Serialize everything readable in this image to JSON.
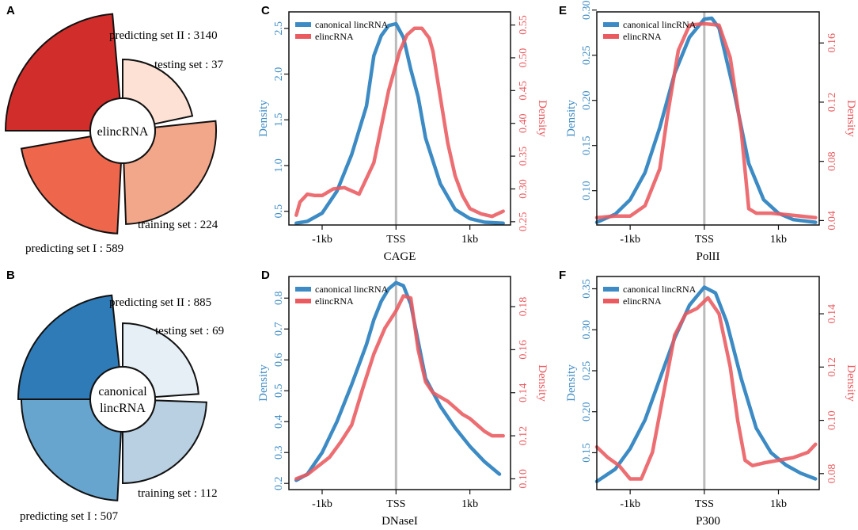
{
  "colors": {
    "blue": "#3C8BC4",
    "red": "#EB5A5F",
    "tss_line": "#BBBBBB"
  },
  "chart_data": [
    {
      "type": "radial_bar",
      "panel": "A",
      "center_label": [
        "elincRNA"
      ],
      "segments": [
        {
          "label": "predicting set II : 3140",
          "value": 3140,
          "color": "#D12E2B"
        },
        {
          "label": "testing set : 37",
          "value": 37,
          "color": "#FDE1D4"
        },
        {
          "label": "training set : 224",
          "value": 224,
          "color": "#F3A78A"
        },
        {
          "label": "predicting set I : 589",
          "value": 589,
          "color": "#EE674C"
        }
      ]
    },
    {
      "type": "radial_bar",
      "panel": "B",
      "center_label": [
        "canonical",
        "lincRNA"
      ],
      "segments": [
        {
          "label": "predicting set II : 885",
          "value": 885,
          "color": "#2E7BB7"
        },
        {
          "label": "testing set : 69",
          "value": 69,
          "color": "#E5EFF5"
        },
        {
          "label": "training set : 112",
          "value": 112,
          "color": "#B8D0E1"
        },
        {
          "label": "predicting set I : 507",
          "value": 507,
          "color": "#67A5CE"
        }
      ]
    },
    {
      "type": "line",
      "panel": "C",
      "xlabel": "CAGE",
      "xticks": [
        "-1kb",
        "TSS",
        "1kb"
      ],
      "xlim": [
        -1.45,
        1.55
      ],
      "legend": [
        "canonical lincRNA",
        "elincRNA"
      ],
      "series": [
        {
          "name": "canonical lincRNA",
          "axis": "left",
          "ylabel": "Density",
          "ylim": [
            0.35,
            2.68
          ],
          "yticks": [
            "0.5",
            "1.0",
            "1.5",
            "2.0",
            "2.5"
          ],
          "ytick_values": [
            0.5,
            1.0,
            1.5,
            2.0,
            2.5
          ],
          "x": [
            -1.35,
            -1.2,
            -1.0,
            -0.8,
            -0.6,
            -0.4,
            -0.3,
            -0.2,
            -0.1,
            0.0,
            0.1,
            0.2,
            0.3,
            0.4,
            0.6,
            0.8,
            1.0,
            1.2,
            1.45
          ],
          "y": [
            0.37,
            0.39,
            0.48,
            0.72,
            1.12,
            1.65,
            2.2,
            2.42,
            2.53,
            2.55,
            2.4,
            2.05,
            1.75,
            1.3,
            0.8,
            0.52,
            0.42,
            0.38,
            0.37
          ]
        },
        {
          "name": "elincRNA",
          "axis": "right",
          "ylabel": "Density",
          "ylim": [
            0.245,
            0.57
          ],
          "yticks": [
            "0.25",
            "0.30",
            "0.35",
            "0.40",
            "0.45",
            "0.50",
            "0.55"
          ],
          "ytick_values": [
            0.25,
            0.3,
            0.35,
            0.4,
            0.45,
            0.5,
            0.55
          ],
          "x": [
            -1.35,
            -1.3,
            -1.2,
            -1.1,
            -1.0,
            -0.85,
            -0.7,
            -0.5,
            -0.3,
            -0.1,
            0.05,
            0.15,
            0.25,
            0.35,
            0.45,
            0.5,
            0.6,
            0.7,
            0.8,
            0.9,
            1.0,
            1.15,
            1.3,
            1.45
          ],
          "y": [
            0.26,
            0.28,
            0.292,
            0.29,
            0.29,
            0.3,
            0.302,
            0.292,
            0.34,
            0.45,
            0.51,
            0.535,
            0.545,
            0.545,
            0.53,
            0.51,
            0.44,
            0.37,
            0.32,
            0.29,
            0.27,
            0.262,
            0.258,
            0.266
          ]
        }
      ]
    },
    {
      "type": "line",
      "panel": "D",
      "xlabel": "DNaseI",
      "xticks": [
        "-1kb",
        "TSS",
        "1kb"
      ],
      "xlim": [
        -1.45,
        1.55
      ],
      "legend": [
        "canonical lincRNA",
        "elincRNA"
      ],
      "series": [
        {
          "name": "canonical lincRNA",
          "axis": "left",
          "ylabel": "Density",
          "ylim": [
            0.18,
            0.87
          ],
          "yticks": [
            "0.2",
            "0.3",
            "0.4",
            "0.5",
            "0.6",
            "0.7",
            "0.8"
          ],
          "ytick_values": [
            0.2,
            0.3,
            0.4,
            0.5,
            0.6,
            0.7,
            0.8
          ],
          "x": [
            -1.35,
            -1.2,
            -1.0,
            -0.8,
            -0.6,
            -0.4,
            -0.3,
            -0.2,
            -0.1,
            0.0,
            0.1,
            0.2,
            0.3,
            0.4,
            0.6,
            0.8,
            1.0,
            1.2,
            1.4
          ],
          "y": [
            0.21,
            0.23,
            0.3,
            0.4,
            0.52,
            0.65,
            0.73,
            0.79,
            0.83,
            0.85,
            0.84,
            0.78,
            0.66,
            0.54,
            0.45,
            0.38,
            0.32,
            0.27,
            0.23
          ]
        },
        {
          "name": "elincRNA",
          "axis": "right",
          "ylabel": "Density",
          "ylim": [
            0.095,
            0.194
          ],
          "yticks": [
            "0.10",
            "0.12",
            "0.14",
            "0.16",
            "0.18"
          ],
          "ytick_values": [
            0.1,
            0.12,
            0.14,
            0.16,
            0.18
          ],
          "x": [
            -1.35,
            -1.2,
            -1.05,
            -0.9,
            -0.75,
            -0.6,
            -0.45,
            -0.3,
            -0.15,
            0.0,
            0.1,
            0.2,
            0.3,
            0.4,
            0.5,
            0.6,
            0.7,
            0.8,
            0.9,
            1.0,
            1.1,
            1.2,
            1.3,
            1.45
          ],
          "y": [
            0.1,
            0.102,
            0.106,
            0.11,
            0.117,
            0.125,
            0.142,
            0.158,
            0.17,
            0.178,
            0.185,
            0.184,
            0.16,
            0.145,
            0.14,
            0.138,
            0.136,
            0.133,
            0.13,
            0.128,
            0.125,
            0.122,
            0.12,
            0.12
          ]
        }
      ]
    },
    {
      "type": "line",
      "panel": "E",
      "xlabel": "PolII",
      "xticks": [
        "-1kb",
        "TSS",
        "1kb"
      ],
      "xlim": [
        -1.45,
        1.55
      ],
      "legend": [
        "canonical lincRNA",
        "elincRNA"
      ],
      "series": [
        {
          "name": "canonical lincRNA",
          "axis": "left",
          "ylabel": "Density",
          "ylim": [
            0.062,
            0.298
          ],
          "yticks": [
            "0.10",
            "0.15",
            "0.20",
            "0.25",
            "0.30"
          ],
          "ytick_values": [
            0.1,
            0.15,
            0.2,
            0.25,
            0.3
          ],
          "x": [
            -1.45,
            -1.2,
            -1.0,
            -0.8,
            -0.6,
            -0.4,
            -0.2,
            0.0,
            0.1,
            0.2,
            0.4,
            0.6,
            0.8,
            1.0,
            1.2,
            1.5
          ],
          "y": [
            0.065,
            0.074,
            0.09,
            0.12,
            0.17,
            0.23,
            0.27,
            0.29,
            0.291,
            0.28,
            0.21,
            0.13,
            0.09,
            0.075,
            0.068,
            0.065
          ]
        },
        {
          "name": "elincRNA",
          "axis": "right",
          "ylabel": "Density",
          "ylim": [
            0.037,
            0.181
          ],
          "yticks": [
            "0.04",
            "0.08",
            "0.12",
            "0.16"
          ],
          "ytick_values": [
            0.04,
            0.08,
            0.12,
            0.16
          ],
          "x": [
            -1.45,
            -1.2,
            -1.0,
            -0.8,
            -0.6,
            -0.5,
            -0.35,
            -0.2,
            0.0,
            0.2,
            0.35,
            0.5,
            0.6,
            0.7,
            0.9,
            1.1,
            1.3,
            1.5
          ],
          "y": [
            0.042,
            0.043,
            0.043,
            0.05,
            0.075,
            0.11,
            0.155,
            0.172,
            0.173,
            0.172,
            0.15,
            0.1,
            0.048,
            0.045,
            0.045,
            0.044,
            0.043,
            0.042
          ]
        }
      ]
    },
    {
      "type": "line",
      "panel": "F",
      "xlabel": "P300",
      "xticks": [
        "-1kb",
        "TSS",
        "1kb"
      ],
      "xlim": [
        -1.45,
        1.55
      ],
      "legend": [
        "canonical lincRNA",
        "elincRNA"
      ],
      "series": [
        {
          "name": "canonical lincRNA",
          "axis": "left",
          "ylabel": "Density",
          "ylim": [
            0.105,
            0.365
          ],
          "yticks": [
            "0.15",
            "0.20",
            "0.25",
            "0.30",
            "0.35"
          ],
          "ytick_values": [
            0.15,
            0.2,
            0.25,
            0.3,
            0.35
          ],
          "x": [
            -1.45,
            -1.2,
            -1.0,
            -0.8,
            -0.6,
            -0.4,
            -0.2,
            0.0,
            0.15,
            0.3,
            0.5,
            0.7,
            0.9,
            1.1,
            1.3,
            1.5
          ],
          "y": [
            0.115,
            0.13,
            0.155,
            0.19,
            0.24,
            0.29,
            0.33,
            0.352,
            0.345,
            0.31,
            0.24,
            0.18,
            0.15,
            0.135,
            0.125,
            0.118
          ]
        },
        {
          "name": "elincRNA",
          "axis": "right",
          "ylabel": "Density",
          "ylim": [
            0.074,
            0.154
          ],
          "yticks": [
            "0.08",
            "0.10",
            "0.12",
            "0.14"
          ],
          "ytick_values": [
            0.08,
            0.1,
            0.12,
            0.14
          ],
          "x": [
            -1.45,
            -1.3,
            -1.15,
            -1.0,
            -0.85,
            -0.7,
            -0.55,
            -0.4,
            -0.25,
            -0.1,
            0.05,
            0.2,
            0.35,
            0.45,
            0.55,
            0.65,
            0.8,
            1.0,
            1.2,
            1.4,
            1.5
          ],
          "y": [
            0.09,
            0.086,
            0.083,
            0.078,
            0.078,
            0.088,
            0.11,
            0.132,
            0.14,
            0.142,
            0.146,
            0.14,
            0.12,
            0.1,
            0.085,
            0.083,
            0.084,
            0.085,
            0.086,
            0.088,
            0.091
          ]
        }
      ]
    }
  ]
}
